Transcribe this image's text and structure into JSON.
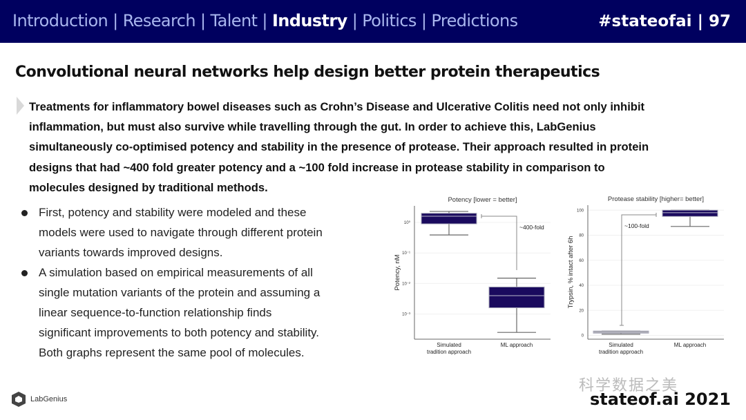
{
  "header": {
    "nav": [
      "Introduction",
      "Research",
      "Talent",
      "Industry",
      "Politics",
      "Predictions"
    ],
    "active": "Industry",
    "separator": " | ",
    "tag": "#stateofai | 97"
  },
  "title": "Convolutional neural networks help design better protein therapeutics",
  "paragraph_lines": [
    "Treatments for inflammatory bowel diseases such as Crohn’s Disease and Ulcerative Colitis need not only inhibit",
    "inflammation, but must also survive while travelling through the gut. In order to achieve this, LabGenius",
    "simultaneously co-optimised potency and stability in the presence of protease. Their approach resulted in protein",
    "designs that had ~400 fold greater potency and a ~100 fold increase in protease stability in comparison to",
    "molecules designed by traditional methods."
  ],
  "bullets": [
    [
      "First, potency and stability were modeled and these",
      "models were used to navigate through different protein",
      "variants towards improved designs."
    ],
    [
      "A simulation based on empirical measurements of all",
      "single mutation variants of the protein and assuming a",
      "linear sequence-to-function relationship finds",
      "significant improvements to both potency and stability.",
      "Both graphs represent the same pool of molecules."
    ]
  ],
  "footer": {
    "logo": "LabGenius",
    "brand": "stateof.ai 2021",
    "watermark": "科学数据之美"
  },
  "colors": {
    "header": "#00005f",
    "box": "#1a0a5e"
  },
  "chart_data": [
    {
      "type": "box",
      "title": "Potency [lower = better]",
      "ylabel": "Potency, nM",
      "yscale": "log",
      "ylim": [
        0.00015,
        3.5
      ],
      "yticks": [
        {
          "v": 1,
          "label": "10⁰"
        },
        {
          "v": 0.1,
          "label": "10⁻¹"
        },
        {
          "v": 0.01,
          "label": "10⁻²"
        },
        {
          "v": 0.001,
          "label": "10⁻³"
        }
      ],
      "categories": [
        "Simulated\ntradition approach",
        "ML approach"
      ],
      "boxes": [
        {
          "whislo": 0.39,
          "q1": 0.9,
          "med": 1.6,
          "q3": 2.0,
          "whishi": 2.3
        },
        {
          "whislo": 0.00025,
          "q1": 0.0016,
          "med": 0.004,
          "q3": 0.0077,
          "whishi": 0.015
        }
      ],
      "annotation": "~400-fold"
    },
    {
      "type": "box",
      "title": "Protease stability [higher= better]",
      "ylabel": "Trypsin, % intact after 6h",
      "yscale": "linear",
      "ylim": [
        -3,
        104
      ],
      "yticks": [
        {
          "v": 0,
          "label": "0"
        },
        {
          "v": 20,
          "label": "20"
        },
        {
          "v": 40,
          "label": "40"
        },
        {
          "v": 60,
          "label": "60"
        },
        {
          "v": 80,
          "label": "80"
        },
        {
          "v": 100,
          "label": "100"
        }
      ],
      "categories": [
        "Simulated\ntradition approach",
        "ML approach"
      ],
      "boxes": [
        {
          "whislo": 1,
          "q1": 1.8,
          "med": 2.5,
          "q3": 3.5,
          "whishi": 3.5
        },
        {
          "whislo": 87,
          "q1": 95,
          "med": 98,
          "q3": 100,
          "whishi": 100
        }
      ],
      "annotation": "~100-fold"
    }
  ]
}
